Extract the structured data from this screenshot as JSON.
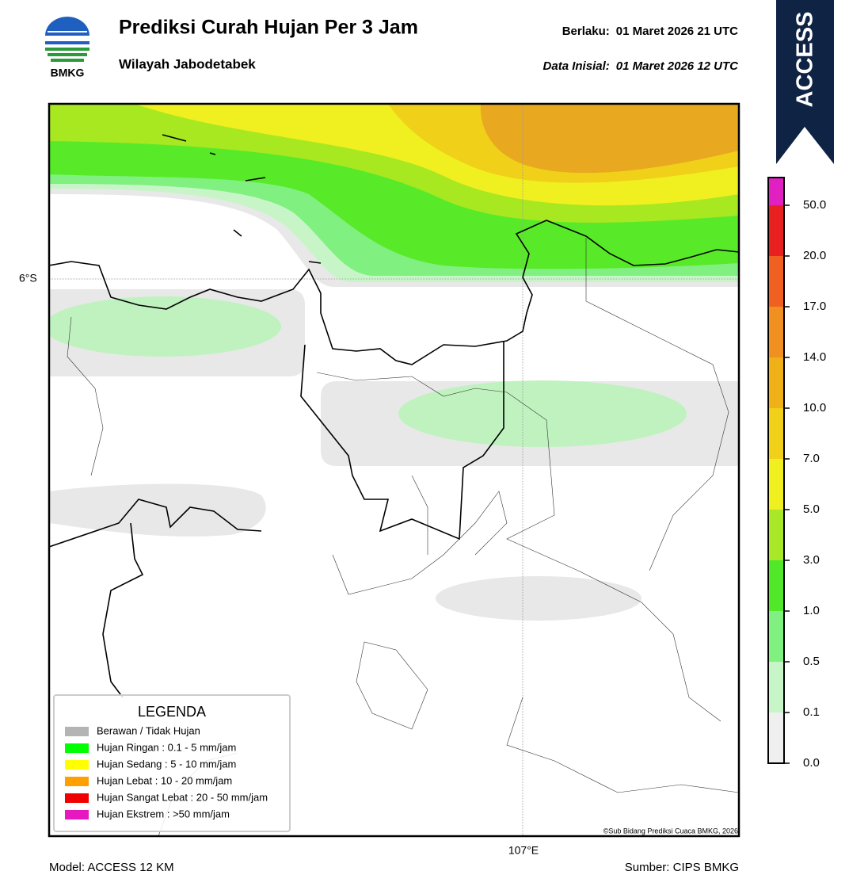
{
  "header": {
    "logo_text": "BMKG",
    "title": "Prediksi Curah Hujan Per 3 Jam",
    "subtitle": "Wilayah Jabodetabek",
    "valid_label": "Berlaku:",
    "valid_time": "01 Maret 2026 21 UTC",
    "init_label": "Data Inisial:",
    "init_time": "01 Maret 2026 12 UTC"
  },
  "badge": "ACCESS",
  "map": {
    "lat_label": "6°S",
    "lon_label": "107°E",
    "credit": "©Sub Bidang Prediksi Cuaca BMKG, 2026"
  },
  "legend": {
    "title": "LEGENDA",
    "items": [
      {
        "label": "Berawan / Tidak Hujan",
        "color": "#b4b4b4"
      },
      {
        "label": "Hujan Ringan : 0.1 - 5 mm/jam",
        "color": "#00ff00"
      },
      {
        "label": "Hujan Sedang : 5 - 10 mm/jam",
        "color": "#ffff00"
      },
      {
        "label": "Hujan Lebat : 10 - 20 mm/jam",
        "color": "#ffa000"
      },
      {
        "label": "Hujan Sangat Lebat : 20 - 50 mm/jam",
        "color": "#f00000"
      },
      {
        "label": "Hujan Ekstrem : >50 mm/jam",
        "color": "#e619c0"
      }
    ]
  },
  "colorbar": {
    "colors": [
      "#efefef",
      "#c8f5c8",
      "#80f080",
      "#50e828",
      "#a8e828",
      "#f0f020",
      "#f0d018",
      "#f0b018",
      "#f09020",
      "#f06020",
      "#e82020",
      "#e020c0"
    ],
    "ticks": [
      {
        "value": 0,
        "label": "0.0"
      },
      {
        "value": 0.1,
        "label": "0.1"
      },
      {
        "value": 0.5,
        "label": "0.5"
      },
      {
        "value": 1,
        "label": "1.0"
      },
      {
        "value": 3,
        "label": "3.0"
      },
      {
        "value": 5,
        "label": "5.0"
      },
      {
        "value": 7,
        "label": "7.0"
      },
      {
        "value": 10,
        "label": "10.0"
      },
      {
        "value": 14,
        "label": "14.0"
      },
      {
        "value": 17,
        "label": "17.0"
      },
      {
        "value": 20,
        "label": "20.0"
      },
      {
        "value": 50,
        "label": "50.0"
      }
    ]
  },
  "footer": {
    "model": "Model: ACCESS 12 KM",
    "source": "Sumber: CIPS BMKG"
  }
}
